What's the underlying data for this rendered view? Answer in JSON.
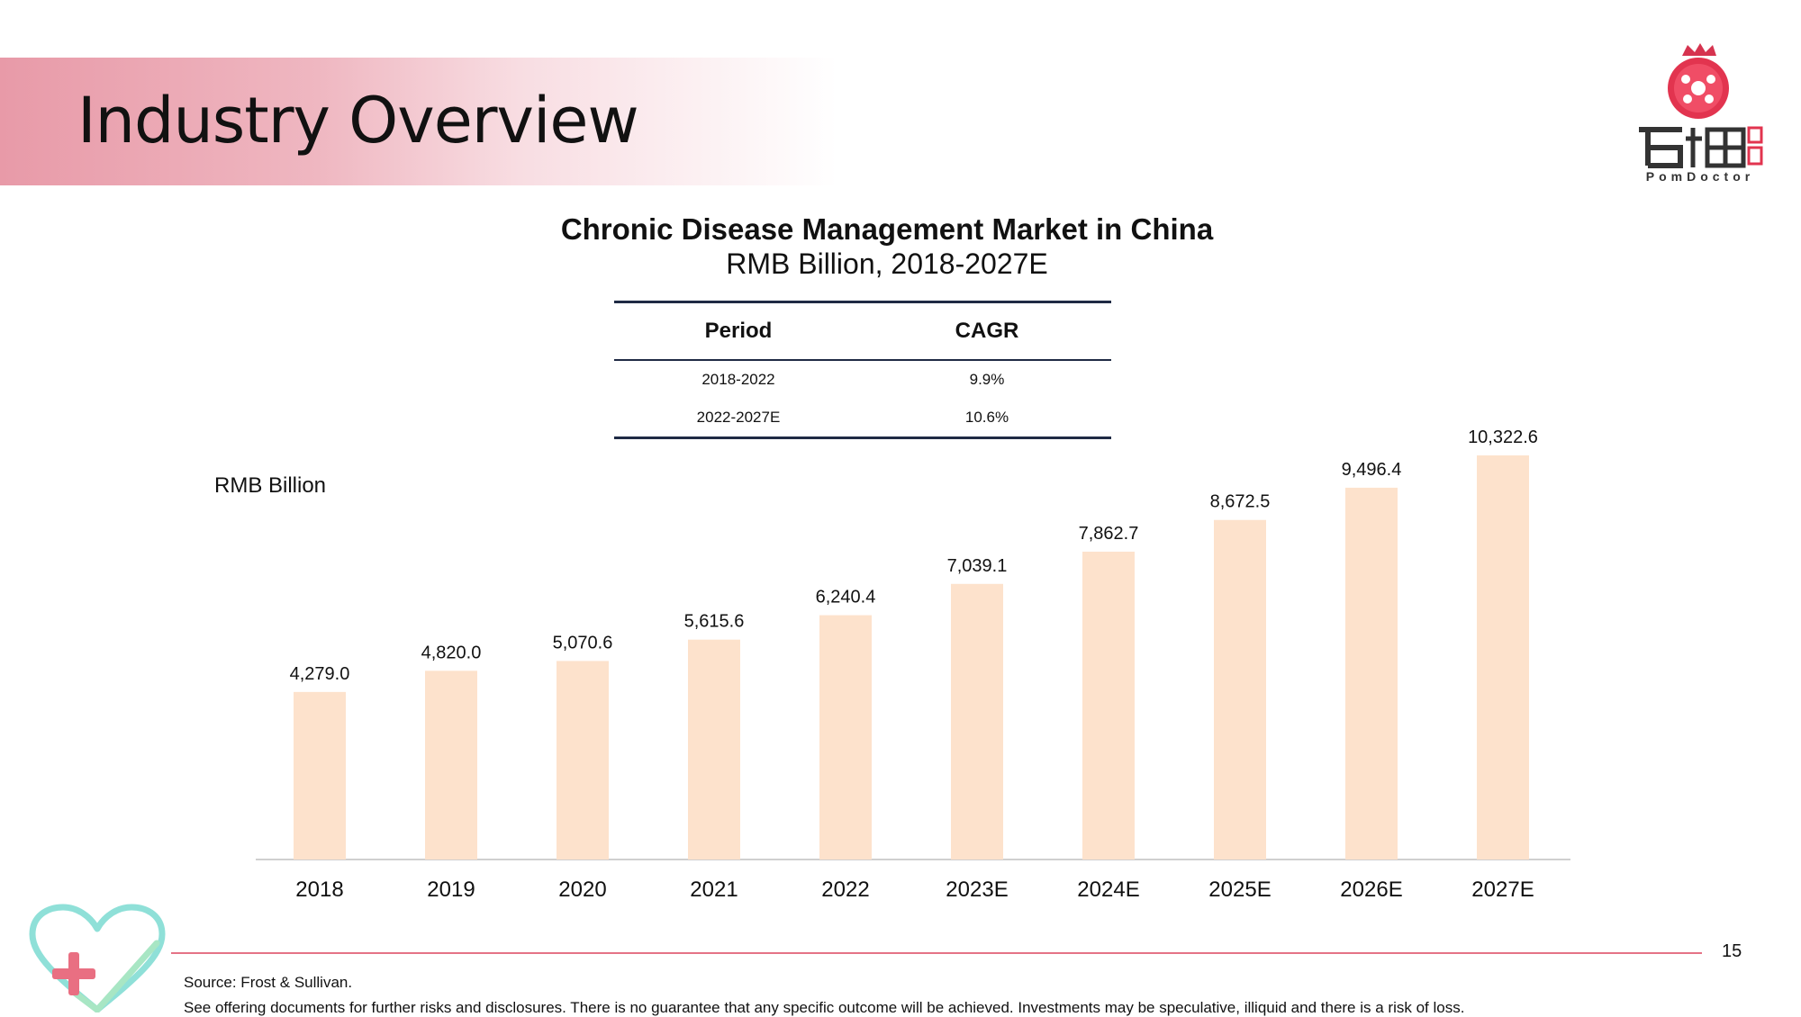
{
  "page": {
    "title": "Industry Overview",
    "page_number": "15"
  },
  "logo": {
    "text": "PomDoctor"
  },
  "table": {
    "headers": [
      "Period",
      "CAGR"
    ],
    "rows": [
      [
        "2018-2022",
        "9.9%"
      ],
      [
        "2022-2027E",
        "10.6%"
      ]
    ]
  },
  "unit_label": "RMB Billion",
  "footer": {
    "source": "Source: Frost & Sullivan.",
    "disclaimer": "See offering documents for further risks and disclosures. There is no guarantee that any specific outcome will be achieved. Investments may be speculative, illiquid and there is a risk of loss."
  },
  "colors": {
    "bar": "#fde2cc",
    "accent": "#e57386",
    "table_rule": "#1f2a44"
  },
  "chart_data": {
    "type": "bar",
    "title": "Chronic Disease Management Market in China",
    "subtitle": "RMB Billion, 2018-2027E",
    "ylabel": "RMB Billion",
    "categories": [
      "2018",
      "2019",
      "2020",
      "2021",
      "2022",
      "2023E",
      "2024E",
      "2025E",
      "2026E",
      "2027E"
    ],
    "values": [
      4279.0,
      4820.0,
      5070.6,
      5615.6,
      6240.4,
      7039.1,
      7862.7,
      8672.5,
      9496.4,
      10322.6
    ],
    "labels": [
      "4,279.0",
      "4,820.0",
      "5,070.6",
      "5,615.6",
      "6,240.4",
      "7,039.1",
      "7,862.7",
      "8,672.5",
      "9,496.4",
      "10,322.6"
    ],
    "ylim": [
      0,
      12000
    ],
    "grid": false,
    "legend": "none"
  }
}
